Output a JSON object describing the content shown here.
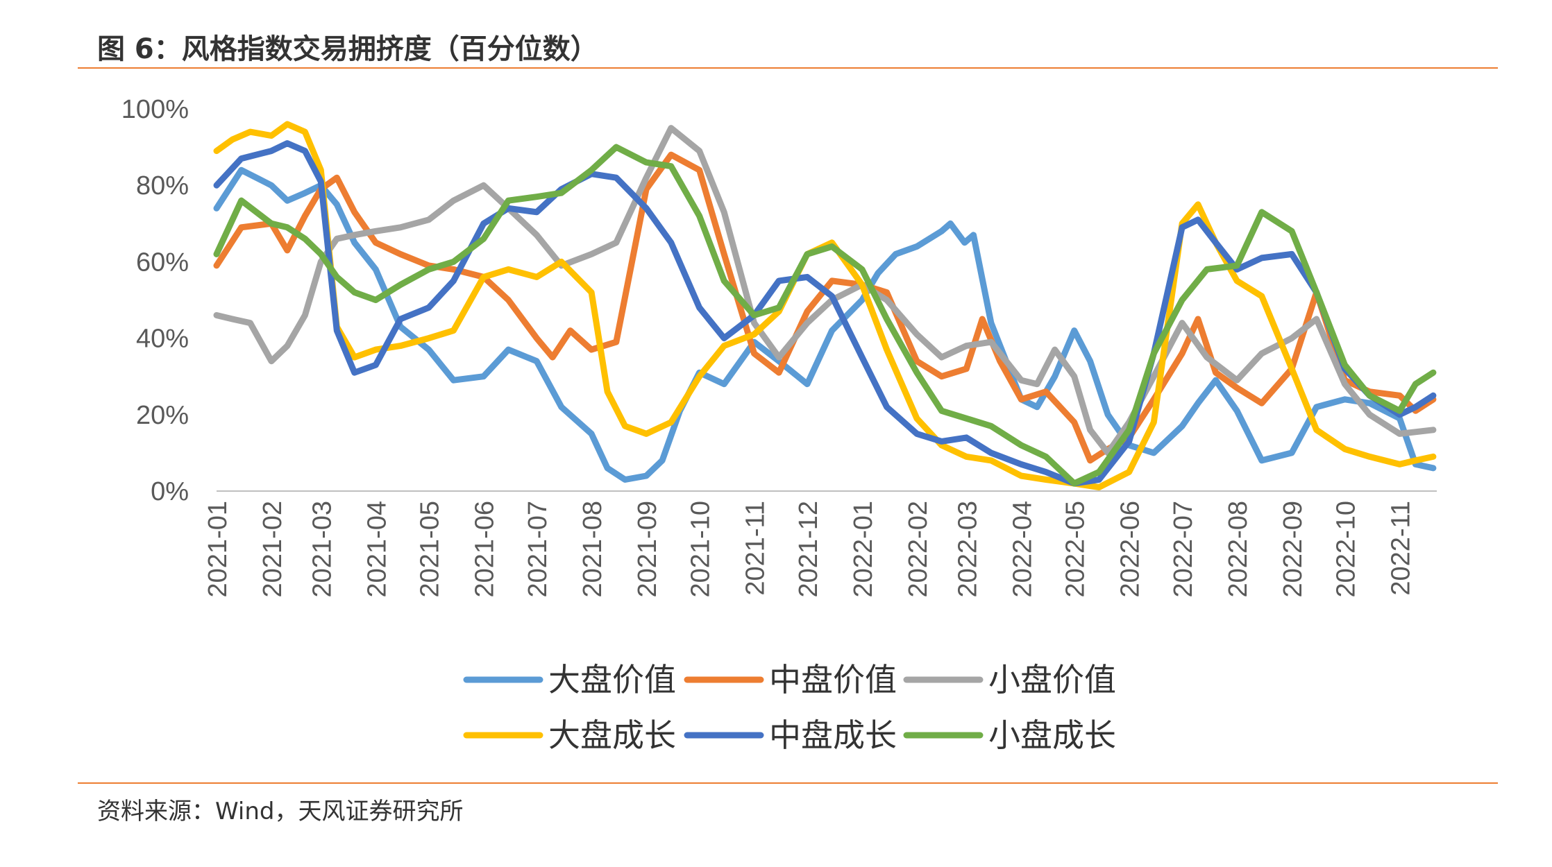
{
  "header": {
    "title": "图 6：风格指数交易拥挤度（百分位数）"
  },
  "footer": {
    "source": "资料来源：Wind，天风证券研究所"
  },
  "chart_data": {
    "type": "line",
    "title": "图 6：风格指数交易拥挤度（百分位数）",
    "xlabel": "",
    "ylabel": "",
    "ylim": [
      0,
      100
    ],
    "y_ticks": [
      "0%",
      "20%",
      "40%",
      "60%",
      "80%",
      "100%"
    ],
    "x_ticks": [
      "2021-01",
      "2021-02",
      "2021-03",
      "2021-04",
      "2021-05",
      "2021-06",
      "2021-07",
      "2021-08",
      "2021-09",
      "2021-10",
      "2021-11",
      "2021-12",
      "2022-01",
      "2022-02",
      "2022-03",
      "2022-04",
      "2022-05",
      "2022-06",
      "2022-07",
      "2022-08",
      "2022-09",
      "2022-10",
      "2022-11"
    ],
    "grid": false,
    "legend_position": "bottom",
    "series": [
      {
        "name": "大盘价值",
        "color": "#5B9BD5",
        "x": [
          "2021-01-01",
          "2021-01-15",
          "2021-02-01",
          "2021-02-10",
          "2021-02-20",
          "2021-03-01",
          "2021-03-10",
          "2021-03-20",
          "2021-04-01",
          "2021-04-15",
          "2021-05-01",
          "2021-05-15",
          "2021-06-01",
          "2021-06-15",
          "2021-07-01",
          "2021-07-15",
          "2021-08-01",
          "2021-08-10",
          "2021-08-20",
          "2021-09-01",
          "2021-09-10",
          "2021-09-20",
          "2021-10-01",
          "2021-10-15",
          "2021-11-01",
          "2021-11-15",
          "2021-12-01",
          "2021-12-15",
          "2022-01-01",
          "2022-01-10",
          "2022-01-20",
          "2022-02-01",
          "2022-02-15",
          "2022-02-20",
          "2022-02-28",
          "2022-03-05",
          "2022-03-15",
          "2022-04-01",
          "2022-04-10",
          "2022-04-20",
          "2022-05-01",
          "2022-05-10",
          "2022-05-20",
          "2022-06-01",
          "2022-06-15",
          "2022-07-01",
          "2022-07-10",
          "2022-07-20",
          "2022-08-01",
          "2022-08-15",
          "2022-09-01",
          "2022-09-15",
          "2022-10-01",
          "2022-10-15",
          "2022-11-01",
          "2022-11-10",
          "2022-11-20"
        ],
        "values": [
          74,
          84,
          80,
          76,
          78,
          80,
          75,
          65,
          58,
          43,
          37,
          29,
          30,
          37,
          34,
          22,
          15,
          6,
          3,
          4,
          8,
          21,
          31,
          28,
          39,
          34,
          28,
          42,
          50,
          57,
          62,
          64,
          68,
          70,
          65,
          67,
          44,
          24,
          22,
          30,
          42,
          34,
          20,
          12,
          10,
          17,
          23,
          29,
          21,
          8,
          10,
          22,
          24,
          23,
          19,
          7,
          6
        ]
      },
      {
        "name": "中盘价值",
        "color": "#ED7D31",
        "x": [
          "2021-01-01",
          "2021-01-15",
          "2021-02-01",
          "2021-02-10",
          "2021-02-20",
          "2021-03-01",
          "2021-03-10",
          "2021-03-20",
          "2021-04-01",
          "2021-04-15",
          "2021-05-01",
          "2021-05-15",
          "2021-06-01",
          "2021-06-15",
          "2021-07-01",
          "2021-07-10",
          "2021-07-20",
          "2021-08-01",
          "2021-08-15",
          "2021-09-01",
          "2021-09-15",
          "2021-10-01",
          "2021-10-15",
          "2021-11-01",
          "2021-11-15",
          "2021-12-01",
          "2021-12-15",
          "2022-01-01",
          "2022-01-15",
          "2022-02-01",
          "2022-02-15",
          "2022-03-01",
          "2022-03-10",
          "2022-03-20",
          "2022-04-01",
          "2022-04-15",
          "2022-05-01",
          "2022-05-10",
          "2022-05-20",
          "2022-06-01",
          "2022-06-15",
          "2022-07-01",
          "2022-07-10",
          "2022-07-20",
          "2022-08-01",
          "2022-08-15",
          "2022-09-01",
          "2022-09-15",
          "2022-10-01",
          "2022-10-15",
          "2022-11-01",
          "2022-11-10",
          "2022-11-20"
        ],
        "values": [
          59,
          69,
          70,
          63,
          72,
          79,
          82,
          73,
          65,
          62,
          59,
          58,
          56,
          50,
          40,
          35,
          42,
          37,
          39,
          79,
          88,
          84,
          62,
          36,
          31,
          47,
          55,
          54,
          52,
          34,
          30,
          32,
          45,
          34,
          24,
          26,
          18,
          8,
          11,
          14,
          24,
          36,
          45,
          31,
          27,
          23,
          32,
          52,
          29,
          26,
          25,
          21,
          24
        ]
      },
      {
        "name": "小盘价值",
        "color": "#A5A5A5",
        "x": [
          "2021-01-01",
          "2021-01-10",
          "2021-01-20",
          "2021-02-01",
          "2021-02-10",
          "2021-02-20",
          "2021-03-01",
          "2021-03-10",
          "2021-03-20",
          "2021-04-01",
          "2021-04-15",
          "2021-05-01",
          "2021-05-15",
          "2021-06-01",
          "2021-06-15",
          "2021-07-01",
          "2021-07-15",
          "2021-08-01",
          "2021-08-15",
          "2021-09-01",
          "2021-09-15",
          "2021-10-01",
          "2021-10-15",
          "2021-11-01",
          "2021-11-15",
          "2021-12-01",
          "2021-12-15",
          "2022-01-01",
          "2022-01-15",
          "2022-02-01",
          "2022-02-15",
          "2022-03-01",
          "2022-03-15",
          "2022-04-01",
          "2022-04-10",
          "2022-04-20",
          "2022-05-01",
          "2022-05-10",
          "2022-05-20",
          "2022-06-01",
          "2022-06-15",
          "2022-07-01",
          "2022-07-15",
          "2022-08-01",
          "2022-08-15",
          "2022-09-01",
          "2022-09-15",
          "2022-10-01",
          "2022-10-15",
          "2022-11-01",
          "2022-11-20"
        ],
        "values": [
          46,
          45,
          44,
          34,
          38,
          46,
          60,
          66,
          67,
          68,
          69,
          71,
          76,
          80,
          74,
          67,
          59,
          62,
          65,
          82,
          95,
          89,
          73,
          44,
          35,
          44,
          50,
          54,
          50,
          41,
          35,
          38,
          39,
          29,
          28,
          37,
          30,
          16,
          10,
          18,
          30,
          44,
          35,
          29,
          36,
          40,
          45,
          28,
          20,
          15,
          16
        ]
      },
      {
        "name": "大盘成长",
        "color": "#FFC000",
        "x": [
          "2021-01-01",
          "2021-01-10",
          "2021-01-20",
          "2021-02-01",
          "2021-02-10",
          "2021-02-20",
          "2021-03-01",
          "2021-03-10",
          "2021-03-20",
          "2021-04-01",
          "2021-04-15",
          "2021-05-01",
          "2021-05-15",
          "2021-06-01",
          "2021-06-15",
          "2021-07-01",
          "2021-07-15",
          "2021-08-01",
          "2021-08-10",
          "2021-08-20",
          "2021-09-01",
          "2021-09-15",
          "2021-10-01",
          "2021-10-15",
          "2021-11-01",
          "2021-11-15",
          "2021-12-01",
          "2021-12-15",
          "2022-01-01",
          "2022-01-15",
          "2022-02-01",
          "2022-02-15",
          "2022-03-01",
          "2022-03-15",
          "2022-04-01",
          "2022-04-15",
          "2022-05-01",
          "2022-05-15",
          "2022-06-01",
          "2022-06-15",
          "2022-07-01",
          "2022-07-10",
          "2022-07-20",
          "2022-08-01",
          "2022-08-15",
          "2022-09-01",
          "2022-09-15",
          "2022-10-01",
          "2022-10-15",
          "2022-11-01",
          "2022-11-10",
          "2022-11-20"
        ],
        "values": [
          89,
          92,
          94,
          93,
          96,
          94,
          84,
          43,
          35,
          37,
          38,
          40,
          42,
          56,
          58,
          56,
          60,
          52,
          26,
          17,
          15,
          18,
          30,
          38,
          41,
          47,
          62,
          65,
          54,
          37,
          19,
          12,
          9,
          8,
          4,
          3,
          2,
          1,
          5,
          18,
          70,
          75,
          65,
          55,
          51,
          32,
          16,
          11,
          9,
          7,
          8,
          9
        ]
      },
      {
        "name": "中盘成长",
        "color": "#4472C4",
        "x": [
          "2021-01-01",
          "2021-01-15",
          "2021-02-01",
          "2021-02-10",
          "2021-02-20",
          "2021-03-01",
          "2021-03-10",
          "2021-03-20",
          "2021-04-01",
          "2021-04-15",
          "2021-05-01",
          "2021-05-15",
          "2021-06-01",
          "2021-06-15",
          "2021-07-01",
          "2021-07-15",
          "2021-08-01",
          "2021-08-15",
          "2021-09-01",
          "2021-09-15",
          "2021-10-01",
          "2021-10-15",
          "2021-11-01",
          "2021-11-15",
          "2021-12-01",
          "2021-12-15",
          "2022-01-01",
          "2022-01-15",
          "2022-02-01",
          "2022-02-15",
          "2022-03-01",
          "2022-03-15",
          "2022-04-01",
          "2022-04-15",
          "2022-05-01",
          "2022-05-15",
          "2022-06-01",
          "2022-06-15",
          "2022-07-01",
          "2022-07-10",
          "2022-07-20",
          "2022-08-01",
          "2022-08-15",
          "2022-09-01",
          "2022-09-15",
          "2022-10-01",
          "2022-10-15",
          "2022-11-01",
          "2022-11-10",
          "2022-11-20"
        ],
        "values": [
          80,
          87,
          89,
          91,
          89,
          81,
          42,
          31,
          33,
          45,
          48,
          55,
          70,
          74,
          73,
          79,
          83,
          82,
          74,
          65,
          48,
          40,
          46,
          55,
          56,
          51,
          35,
          22,
          15,
          13,
          14,
          10,
          7,
          5,
          2,
          3,
          13,
          36,
          69,
          71,
          65,
          58,
          61,
          62,
          52,
          32,
          25,
          20,
          22,
          25
        ]
      },
      {
        "name": "小盘成长",
        "color": "#70AD47",
        "x": [
          "2021-01-01",
          "2021-01-15",
          "2021-02-01",
          "2021-02-10",
          "2021-02-20",
          "2021-03-01",
          "2021-03-10",
          "2021-03-20",
          "2021-04-01",
          "2021-04-15",
          "2021-05-01",
          "2021-05-15",
          "2021-06-01",
          "2021-06-15",
          "2021-07-01",
          "2021-07-15",
          "2021-08-01",
          "2021-08-15",
          "2021-09-01",
          "2021-09-15",
          "2021-10-01",
          "2021-10-15",
          "2021-11-01",
          "2021-11-15",
          "2021-12-01",
          "2021-12-15",
          "2022-01-01",
          "2022-01-15",
          "2022-02-01",
          "2022-02-15",
          "2022-03-01",
          "2022-03-15",
          "2022-04-01",
          "2022-04-15",
          "2022-05-01",
          "2022-05-15",
          "2022-06-01",
          "2022-06-15",
          "2022-07-01",
          "2022-07-15",
          "2022-08-01",
          "2022-08-15",
          "2022-09-01",
          "2022-09-15",
          "2022-10-01",
          "2022-10-15",
          "2022-11-01",
          "2022-11-10",
          "2022-11-20"
        ],
        "values": [
          62,
          76,
          70,
          69,
          66,
          62,
          56,
          52,
          50,
          54,
          58,
          60,
          66,
          76,
          77,
          78,
          84,
          90,
          86,
          85,
          72,
          55,
          46,
          48,
          62,
          64,
          58,
          45,
          31,
          21,
          19,
          17,
          12,
          9,
          2,
          5,
          16,
          36,
          50,
          58,
          59,
          73,
          68,
          52,
          33,
          25,
          21,
          28,
          31
        ]
      }
    ]
  }
}
